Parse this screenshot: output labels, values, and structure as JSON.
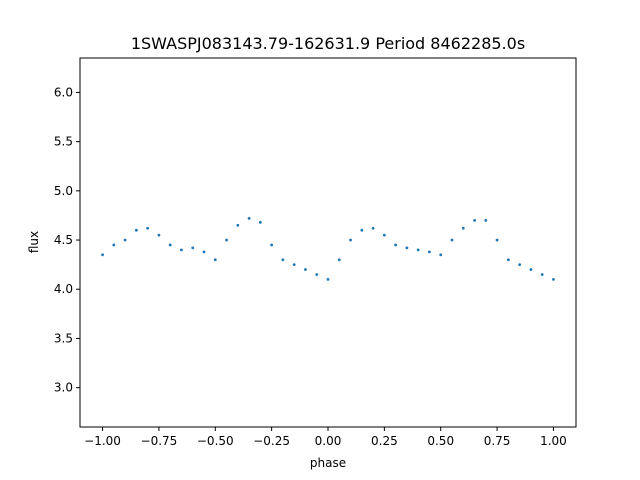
{
  "chart_data": {
    "type": "scatter",
    "title": "1SWASPJ083143.79-162631.9 Period 8462285.0s",
    "xlabel": "phase",
    "ylabel": "flux",
    "xlim": [
      -1.1,
      1.1
    ],
    "ylim": [
      2.6,
      6.35
    ],
    "xticks": [
      -1.0,
      -0.75,
      -0.5,
      -0.25,
      0.0,
      0.25,
      0.5,
      0.75,
      1.0
    ],
    "xtick_labels": [
      "−1.00",
      "−0.75",
      "−0.50",
      "−0.25",
      "0.00",
      "0.25",
      "0.50",
      "0.75",
      "1.00"
    ],
    "yticks": [
      3.0,
      3.5,
      4.0,
      4.5,
      5.0,
      5.5,
      6.0
    ],
    "ytick_labels": [
      "3.0",
      "3.5",
      "4.0",
      "4.5",
      "5.0",
      "5.5",
      "6.0"
    ],
    "grid": false,
    "point_color": "#1f77b4",
    "series": [
      {
        "x": [
          -1.0,
          -0.95,
          -0.9,
          -0.85,
          -0.8,
          -0.75,
          -0.7,
          -0.65,
          -0.6,
          -0.55,
          -0.5,
          -0.45,
          -0.4,
          -0.35,
          -0.3,
          -0.25,
          -0.2,
          -0.15,
          -0.1,
          -0.05,
          0.0,
          0.05,
          0.1,
          0.15,
          0.2,
          0.25,
          0.3,
          0.35,
          0.4,
          0.45,
          0.5,
          0.55,
          0.6,
          0.65,
          0.7,
          0.75,
          0.8,
          0.85,
          0.9,
          0.95,
          1.0
        ],
        "y": [
          4.35,
          4.45,
          4.5,
          4.6,
          4.62,
          4.55,
          4.45,
          4.4,
          4.42,
          4.38,
          4.3,
          4.5,
          4.65,
          4.72,
          4.68,
          4.45,
          4.3,
          4.25,
          4.2,
          4.15,
          4.1,
          4.3,
          4.5,
          4.6,
          4.62,
          4.55,
          4.45,
          4.42,
          4.4,
          4.38,
          4.35,
          4.5,
          4.62,
          4.7,
          4.7,
          4.5,
          4.3,
          4.25,
          4.2,
          4.15,
          4.1
        ]
      }
    ]
  }
}
